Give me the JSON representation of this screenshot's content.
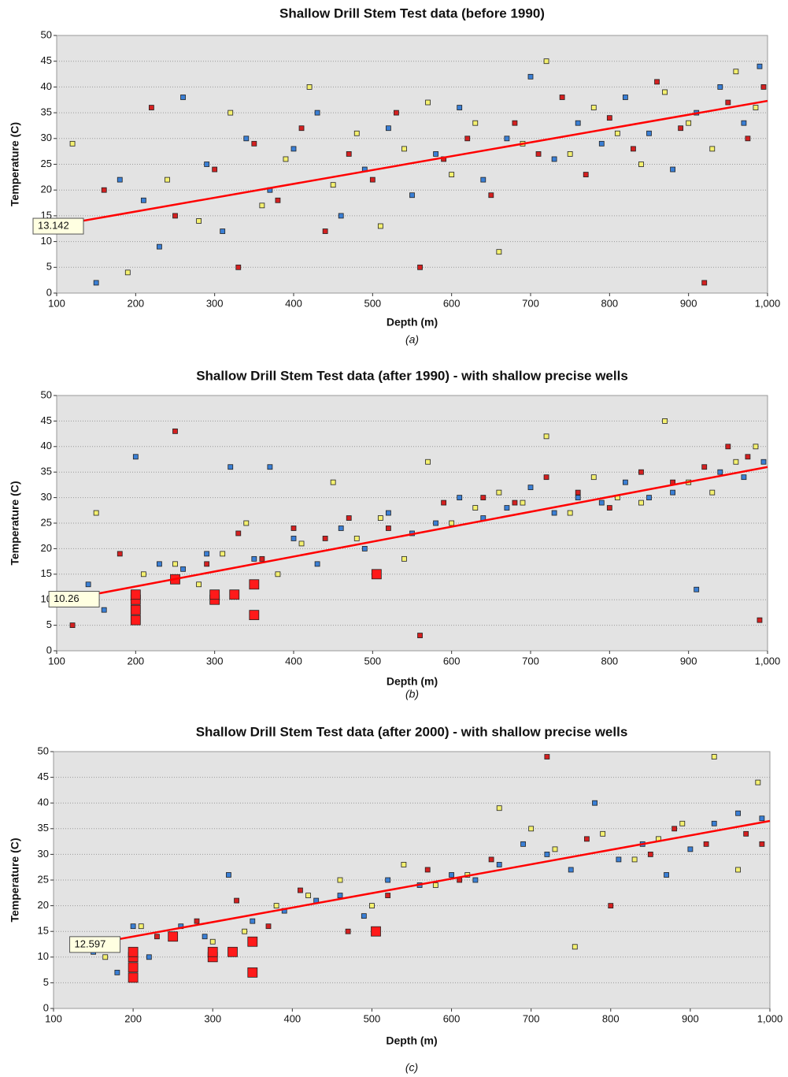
{
  "chart_data": [
    {
      "type": "scatter",
      "title": "Shallow Drill Stem Test data (before 1990)",
      "caption": "(a)",
      "x_label": "Depth (m)",
      "y_label": "Temperature (C)",
      "xlim": [
        100,
        1000
      ],
      "ylim": [
        0,
        50
      ],
      "xticks": [
        100,
        200,
        300,
        400,
        500,
        600,
        700,
        800,
        900,
        {
          "value": 1000,
          "label": "1,000"
        }
      ],
      "yticks": [
        0,
        5,
        10,
        15,
        20,
        25,
        30,
        35,
        40,
        45,
        50
      ],
      "grid": true,
      "series": [
        {
          "color": "#3a7fd5",
          "x": [
            150,
            180,
            210,
            230,
            260,
            290,
            310,
            340,
            370,
            400,
            430,
            460,
            490,
            520,
            550,
            580,
            610,
            640,
            670,
            700,
            730,
            760,
            790,
            820,
            850,
            880,
            910,
            940,
            970,
            990
          ],
          "values": [
            2,
            22,
            18,
            9,
            38,
            25,
            12,
            30,
            20,
            28,
            35,
            15,
            24,
            32,
            19,
            27,
            36,
            22,
            30,
            42,
            26,
            33,
            29,
            38,
            31,
            24,
            35,
            40,
            33,
            44
          ]
        },
        {
          "color": "#f4f070",
          "x": [
            120,
            190,
            240,
            280,
            320,
            360,
            390,
            420,
            450,
            480,
            510,
            540,
            570,
            600,
            630,
            660,
            690,
            720,
            750,
            780,
            810,
            840,
            870,
            900,
            930,
            960,
            985
          ],
          "values": [
            29,
            4,
            22,
            14,
            35,
            17,
            26,
            40,
            21,
            31,
            13,
            28,
            37,
            23,
            33,
            8,
            29,
            45,
            27,
            36,
            31,
            25,
            39,
            33,
            28,
            43,
            36
          ]
        },
        {
          "color": "#d42020",
          "x": [
            160,
            220,
            250,
            300,
            330,
            350,
            380,
            410,
            440,
            470,
            500,
            530,
            560,
            590,
            620,
            650,
            680,
            710,
            740,
            770,
            800,
            830,
            860,
            890,
            920,
            950,
            975,
            995
          ],
          "values": [
            20,
            36,
            15,
            24,
            5,
            29,
            18,
            32,
            12,
            27,
            22,
            35,
            5,
            26,
            30,
            19,
            33,
            27,
            38,
            23,
            34,
            28,
            41,
            32,
            2,
            37,
            30,
            40
          ]
        }
      ],
      "trend": {
        "color": "#ff0000",
        "x": [
          100,
          1000
        ],
        "values": [
          13.142,
          37.3
        ]
      },
      "annotation": "13.142"
    },
    {
      "type": "scatter",
      "title": "Shallow Drill Stem Test data (after 1990) - with shallow precise wells",
      "caption": "(b)",
      "x_label": "Depth (m)",
      "y_label": "Temperature (C)",
      "xlim": [
        100,
        1000
      ],
      "ylim": [
        0,
        50
      ],
      "xticks": [
        100,
        200,
        300,
        400,
        500,
        600,
        700,
        800,
        900,
        {
          "value": 1000,
          "label": "1,000"
        }
      ],
      "yticks": [
        0,
        5,
        10,
        15,
        20,
        25,
        30,
        35,
        40,
        45,
        50
      ],
      "grid": true,
      "series": [
        {
          "color": "#3a7fd5",
          "x": [
            140,
            160,
            200,
            230,
            260,
            290,
            320,
            350,
            370,
            400,
            430,
            460,
            490,
            520,
            550,
            580,
            610,
            640,
            670,
            700,
            730,
            760,
            790,
            820,
            850,
            880,
            910,
            940,
            970,
            995
          ],
          "values": [
            13,
            8,
            38,
            17,
            16,
            19,
            36,
            18,
            36,
            22,
            17,
            24,
            20,
            27,
            23,
            25,
            30,
            26,
            28,
            32,
            27,
            30,
            29,
            33,
            30,
            31,
            12,
            35,
            34,
            37
          ]
        },
        {
          "color": "#f4f070",
          "x": [
            150,
            210,
            250,
            280,
            310,
            340,
            380,
            410,
            450,
            480,
            510,
            540,
            570,
            600,
            630,
            660,
            690,
            720,
            750,
            780,
            810,
            840,
            870,
            900,
            930,
            960,
            985
          ],
          "values": [
            27,
            15,
            17,
            13,
            19,
            25,
            15,
            21,
            33,
            22,
            26,
            18,
            37,
            25,
            28,
            31,
            29,
            42,
            27,
            34,
            30,
            29,
            45,
            33,
            31,
            37,
            40
          ]
        },
        {
          "color": "#d42020",
          "x": [
            120,
            180,
            250,
            290,
            330,
            360,
            400,
            440,
            470,
            520,
            560,
            590,
            640,
            680,
            720,
            760,
            800,
            840,
            880,
            920,
            950,
            975,
            990
          ],
          "values": [
            5,
            19,
            43,
            17,
            23,
            18,
            24,
            22,
            26,
            24,
            3,
            29,
            30,
            29,
            34,
            31,
            28,
            35,
            33,
            36,
            40,
            38,
            6
          ]
        },
        {
          "color": "#ff1a1a",
          "marker": "large",
          "x": [
            200,
            200,
            200,
            200,
            250,
            300,
            300,
            325,
            350,
            350,
            505
          ],
          "values": [
            6,
            8,
            10,
            11,
            14,
            10,
            11,
            11,
            7,
            13,
            15
          ]
        }
      ],
      "trend": {
        "color": "#ff0000",
        "x": [
          120,
          1000
        ],
        "values": [
          10.26,
          36
        ]
      },
      "annotation": "10.26"
    },
    {
      "type": "scatter",
      "title": "Shallow Drill Stem Test data (after 2000) - with shallow precise wells",
      "caption": "(c)",
      "x_label": "Depth (m)",
      "y_label": "Temperature (C)",
      "xlim": [
        100,
        1000
      ],
      "ylim": [
        0,
        50
      ],
      "xticks": [
        100,
        200,
        300,
        400,
        500,
        600,
        700,
        800,
        900,
        {
          "value": 1000,
          "label": "1,000"
        }
      ],
      "yticks": [
        0,
        5,
        10,
        15,
        20,
        25,
        30,
        35,
        40,
        45,
        50
      ],
      "grid": true,
      "series": [
        {
          "color": "#3a7fd5",
          "x": [
            150,
            180,
            200,
            220,
            260,
            290,
            320,
            350,
            390,
            430,
            460,
            490,
            520,
            560,
            600,
            630,
            660,
            690,
            720,
            750,
            780,
            810,
            840,
            870,
            900,
            930,
            960,
            990
          ],
          "values": [
            11,
            7,
            16,
            10,
            16,
            14,
            26,
            17,
            19,
            21,
            22,
            18,
            25,
            24,
            26,
            25,
            28,
            32,
            30,
            27,
            40,
            29,
            32,
            26,
            31,
            36,
            38,
            37
          ]
        },
        {
          "color": "#f4f070",
          "x": [
            165,
            210,
            250,
            300,
            340,
            380,
            420,
            460,
            500,
            540,
            580,
            620,
            660,
            700,
            730,
            755,
            790,
            830,
            860,
            890,
            930,
            960,
            985
          ],
          "values": [
            10,
            16,
            14,
            13,
            15,
            20,
            22,
            25,
            20,
            28,
            24,
            26,
            39,
            35,
            31,
            12,
            34,
            29,
            33,
            36,
            49,
            27,
            44
          ]
        },
        {
          "color": "#d42020",
          "x": [
            230,
            280,
            330,
            370,
            410,
            470,
            520,
            570,
            610,
            650,
            720,
            770,
            800,
            850,
            880,
            920,
            970,
            990
          ],
          "values": [
            14,
            17,
            21,
            16,
            23,
            15,
            22,
            27,
            25,
            29,
            49,
            33,
            20,
            30,
            35,
            32,
            34,
            32
          ]
        },
        {
          "color": "#ff1a1a",
          "marker": "large",
          "x": [
            200,
            200,
            200,
            200,
            250,
            300,
            300,
            325,
            350,
            350,
            505
          ],
          "values": [
            6,
            8,
            10,
            11,
            14,
            10,
            11,
            11,
            7,
            13,
            15
          ]
        }
      ],
      "trend": {
        "color": "#ff0000",
        "x": [
          150,
          1000
        ],
        "values": [
          12.597,
          36.5
        ]
      },
      "annotation": "12.597"
    }
  ]
}
